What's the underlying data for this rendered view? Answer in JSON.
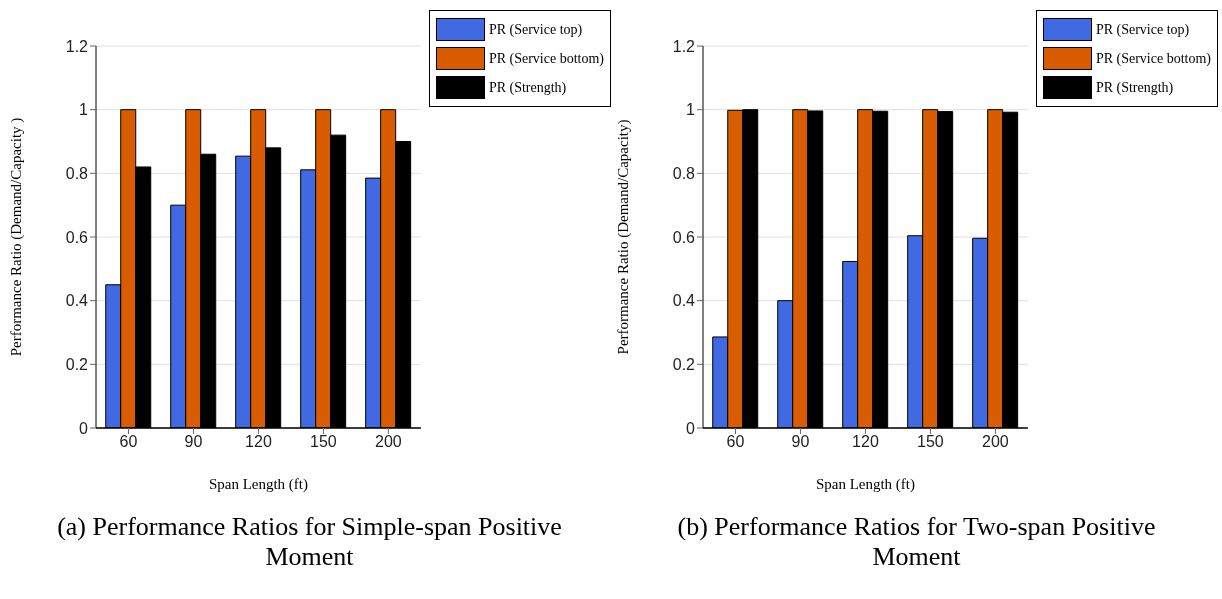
{
  "chart_data": [
    {
      "type": "bar",
      "xlabel": "Span Length (ft)",
      "ylabel": "Performance Ratio (Demand/Capacity )",
      "categories": [
        "60",
        "90",
        "120",
        "150",
        "200"
      ],
      "series": [
        {
          "name": "PR (Service top)",
          "color": "#4169e1",
          "values": [
            0.45,
            0.7,
            0.854,
            0.811,
            0.785
          ]
        },
        {
          "name": "PR (Service bottom)",
          "color": "#d95c00",
          "values": [
            1.0,
            1.0,
            1.0,
            1.0,
            1.0
          ]
        },
        {
          "name": "PR (Strength)",
          "color": "#000000",
          "values": [
            0.82,
            0.86,
            0.88,
            0.92,
            0.9
          ]
        }
      ],
      "ylim": [
        0,
        1.2
      ],
      "yticks": [
        0,
        0.2,
        0.4,
        0.6,
        0.8,
        1,
        1.2
      ],
      "grid": "y",
      "legend": "top right",
      "annotations": [
        "(a) Performance Ratios for Simple-span Positive Moment"
      ]
    },
    {
      "type": "bar",
      "xlabel": "Span Length (ft)",
      "ylabel": "Performance Ratio (Demand/Capacity)",
      "categories": [
        "60",
        "90",
        "120",
        "150",
        "200"
      ],
      "series": [
        {
          "name": "PR (Service top)",
          "color": "#4169e1",
          "values": [
            0.286,
            0.4,
            0.523,
            0.604,
            0.596
          ]
        },
        {
          "name": "PR (Service bottom)",
          "color": "#d95c00",
          "values": [
            0.998,
            1.0,
            1.0,
            1.0,
            1.0
          ]
        },
        {
          "name": "PR (Strength)",
          "color": "#000000",
          "values": [
            1.0,
            0.996,
            0.995,
            0.994,
            0.992
          ]
        }
      ],
      "ylim": [
        0,
        1.2
      ],
      "yticks": [
        0,
        0.2,
        0.4,
        0.6,
        0.8,
        1,
        1.2
      ],
      "grid": "y",
      "legend": "top right",
      "annotations": [
        "(b) Performance Ratios for Two-span Positive Moment"
      ]
    }
  ]
}
